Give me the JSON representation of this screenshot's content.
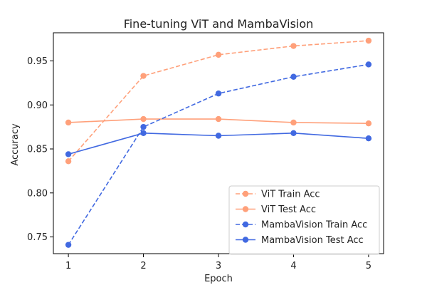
{
  "chart_data": {
    "type": "line",
    "title": "Fine-tuning ViT and MambaVision",
    "xlabel": "Epoch",
    "ylabel": "Accuracy",
    "x": [
      1,
      2,
      3,
      4,
      5
    ],
    "xlim": [
      0.8,
      5.2
    ],
    "ylim": [
      0.731,
      0.982
    ],
    "xticks": [
      "1",
      "2",
      "3",
      "4",
      "5"
    ],
    "yticks": [
      "0.75",
      "0.80",
      "0.85",
      "0.90",
      "0.95"
    ],
    "grid": false,
    "legend_position": "bottom-right",
    "series": [
      {
        "name": "ViT Train Acc",
        "values": [
          0.836,
          0.933,
          0.957,
          0.967,
          0.973
        ],
        "color": "#FFA07A",
        "linestyle": "dashed",
        "marker": "circle"
      },
      {
        "name": "ViT Test Acc",
        "values": [
          0.88,
          0.884,
          0.884,
          0.88,
          0.879
        ],
        "color": "#FFA07A",
        "linestyle": "solid",
        "marker": "circle"
      },
      {
        "name": "MambaVision Train Acc",
        "values": [
          0.741,
          0.875,
          0.913,
          0.932,
          0.946
        ],
        "color": "#4169E1",
        "linestyle": "dashed",
        "marker": "circle"
      },
      {
        "name": "MambaVision Test Acc",
        "values": [
          0.844,
          0.868,
          0.865,
          0.868,
          0.862
        ],
        "color": "#4169E1",
        "linestyle": "solid",
        "marker": "circle"
      }
    ]
  }
}
